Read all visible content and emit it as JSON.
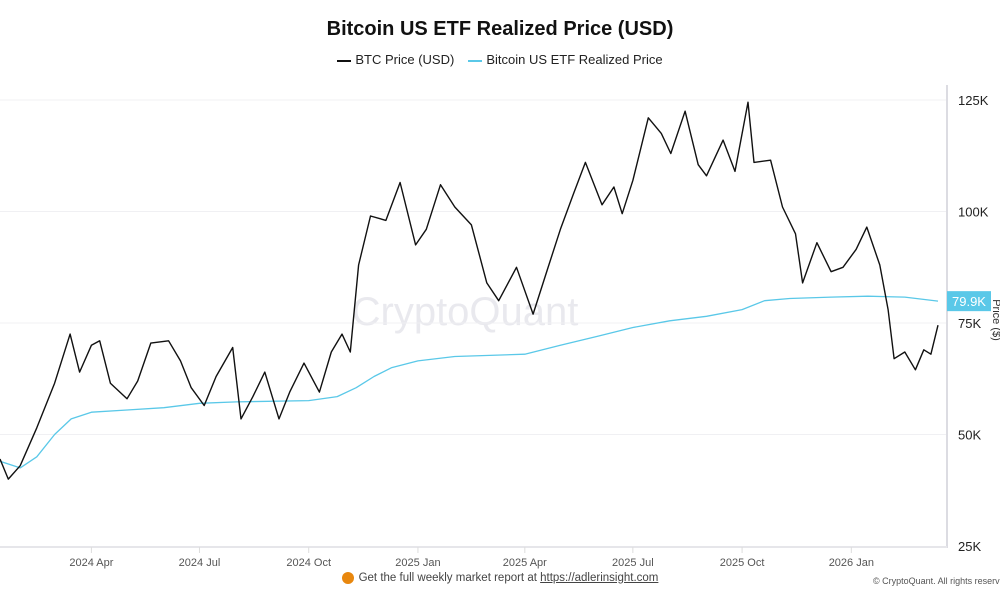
{
  "chart_data": {
    "type": "line",
    "title": "Bitcoin US ETF Realized Price (USD)",
    "ylabel": "Price ($)",
    "yscale": "linear",
    "ylim": [
      25000,
      125000
    ],
    "xlim": [
      "2024-01-15",
      "2026-03-15"
    ],
    "yticks": [
      {
        "v": 25000,
        "label": "25K"
      },
      {
        "v": 50000,
        "label": "50K"
      },
      {
        "v": 75000,
        "label": "75K"
      },
      {
        "v": 100000,
        "label": "100K"
      },
      {
        "v": 125000,
        "label": "125K"
      }
    ],
    "xticks": [
      {
        "d": "2024-04-01",
        "label": "2024 Apr"
      },
      {
        "d": "2024-07-01",
        "label": "2024 Jul"
      },
      {
        "d": "2024-10-01",
        "label": "2024 Oct"
      },
      {
        "d": "2025-01-01",
        "label": "2025 Jan"
      },
      {
        "d": "2025-04-01",
        "label": "2025 Apr"
      },
      {
        "d": "2025-07-01",
        "label": "2025 Jul"
      },
      {
        "d": "2025-10-01",
        "label": "2025 Oct"
      },
      {
        "d": "2026-01-01",
        "label": "2026 Jan"
      }
    ],
    "grid": true,
    "legend_position": "top",
    "last_value_label": "79.9K",
    "series": [
      {
        "name": "BTC Price (USD)",
        "color": "#111111",
        "points": [
          [
            "2024-01-15",
            44500
          ],
          [
            "2024-01-22",
            40000
          ],
          [
            "2024-02-01",
            43000
          ],
          [
            "2024-02-15",
            51500
          ],
          [
            "2024-03-01",
            61500
          ],
          [
            "2024-03-14",
            72500
          ],
          [
            "2024-03-22",
            64000
          ],
          [
            "2024-04-01",
            70000
          ],
          [
            "2024-04-08",
            71000
          ],
          [
            "2024-04-17",
            61500
          ],
          [
            "2024-05-01",
            58000
          ],
          [
            "2024-05-10",
            62000
          ],
          [
            "2024-05-21",
            70500
          ],
          [
            "2024-06-05",
            71000
          ],
          [
            "2024-06-15",
            66500
          ],
          [
            "2024-06-24",
            60500
          ],
          [
            "2024-07-05",
            56500
          ],
          [
            "2024-07-15",
            63000
          ],
          [
            "2024-07-29",
            69500
          ],
          [
            "2024-08-05",
            53500
          ],
          [
            "2024-08-15",
            58500
          ],
          [
            "2024-08-25",
            64000
          ],
          [
            "2024-09-06",
            53500
          ],
          [
            "2024-09-15",
            59500
          ],
          [
            "2024-09-27",
            66000
          ],
          [
            "2024-10-10",
            59500
          ],
          [
            "2024-10-20",
            68500
          ],
          [
            "2024-10-29",
            72500
          ],
          [
            "2024-11-05",
            68500
          ],
          [
            "2024-11-12",
            88000
          ],
          [
            "2024-11-22",
            99000
          ],
          [
            "2024-12-05",
            98000
          ],
          [
            "2024-12-17",
            106500
          ],
          [
            "2024-12-30",
            92500
          ],
          [
            "2025-01-08",
            96000
          ],
          [
            "2025-01-20",
            106000
          ],
          [
            "2025-02-01",
            101000
          ],
          [
            "2025-02-15",
            97000
          ],
          [
            "2025-02-28",
            84000
          ],
          [
            "2025-03-10",
            80000
          ],
          [
            "2025-03-25",
            87500
          ],
          [
            "2025-04-08",
            77000
          ],
          [
            "2025-04-20",
            87000
          ],
          [
            "2025-05-01",
            96000
          ],
          [
            "2025-05-12",
            104000
          ],
          [
            "2025-05-22",
            111000
          ],
          [
            "2025-06-05",
            101500
          ],
          [
            "2025-06-15",
            105500
          ],
          [
            "2025-06-22",
            99500
          ],
          [
            "2025-07-01",
            107000
          ],
          [
            "2025-07-14",
            121000
          ],
          [
            "2025-07-25",
            117500
          ],
          [
            "2025-08-02",
            113000
          ],
          [
            "2025-08-14",
            122500
          ],
          [
            "2025-08-25",
            110500
          ],
          [
            "2025-09-01",
            108000
          ],
          [
            "2025-09-15",
            116000
          ],
          [
            "2025-09-25",
            109000
          ],
          [
            "2025-10-06",
            124500
          ],
          [
            "2025-10-11",
            111000
          ],
          [
            "2025-10-25",
            111500
          ],
          [
            "2025-11-04",
            101000
          ],
          [
            "2025-11-15",
            95000
          ],
          [
            "2025-11-21",
            84000
          ],
          [
            "2025-12-03",
            93000
          ],
          [
            "2025-12-15",
            86500
          ],
          [
            "2025-12-25",
            87500
          ],
          [
            "2026-01-05",
            91500
          ],
          [
            "2026-01-14",
            96500
          ],
          [
            "2026-01-25",
            88000
          ],
          [
            "2026-02-01",
            78000
          ],
          [
            "2026-02-06",
            67000
          ],
          [
            "2026-02-15",
            68500
          ],
          [
            "2026-02-24",
            64500
          ],
          [
            "2026-03-03",
            69000
          ],
          [
            "2026-03-09",
            68000
          ],
          [
            "2026-03-15",
            74500
          ]
        ]
      },
      {
        "name": "Bitcoin US ETF Realized Price",
        "color": "#5ac8e8",
        "points": [
          [
            "2024-01-15",
            44000
          ],
          [
            "2024-02-01",
            42500
          ],
          [
            "2024-02-15",
            45000
          ],
          [
            "2024-03-01",
            50000
          ],
          [
            "2024-03-15",
            53500
          ],
          [
            "2024-04-01",
            55000
          ],
          [
            "2024-05-01",
            55500
          ],
          [
            "2024-06-01",
            56000
          ],
          [
            "2024-07-01",
            57000
          ],
          [
            "2024-08-01",
            57300
          ],
          [
            "2024-10-01",
            57600
          ],
          [
            "2024-10-25",
            58500
          ],
          [
            "2024-11-10",
            60500
          ],
          [
            "2024-11-25",
            63000
          ],
          [
            "2024-12-10",
            65000
          ],
          [
            "2025-01-01",
            66500
          ],
          [
            "2025-02-01",
            67500
          ],
          [
            "2025-04-01",
            68000
          ],
          [
            "2025-05-01",
            70000
          ],
          [
            "2025-06-01",
            72000
          ],
          [
            "2025-07-01",
            74000
          ],
          [
            "2025-08-01",
            75500
          ],
          [
            "2025-09-01",
            76500
          ],
          [
            "2025-10-01",
            78000
          ],
          [
            "2025-10-20",
            80000
          ],
          [
            "2025-11-10",
            80500
          ],
          [
            "2025-12-15",
            80800
          ],
          [
            "2026-01-15",
            81000
          ],
          [
            "2026-02-15",
            80800
          ],
          [
            "2026-03-15",
            79900
          ]
        ]
      }
    ]
  },
  "watermark": "CryptoQuant",
  "footer": {
    "text": "Get the full weekly market report at ",
    "link": "https://adlerinsight.com",
    "copyright": "© CryptoQuant. All rights reserved."
  }
}
